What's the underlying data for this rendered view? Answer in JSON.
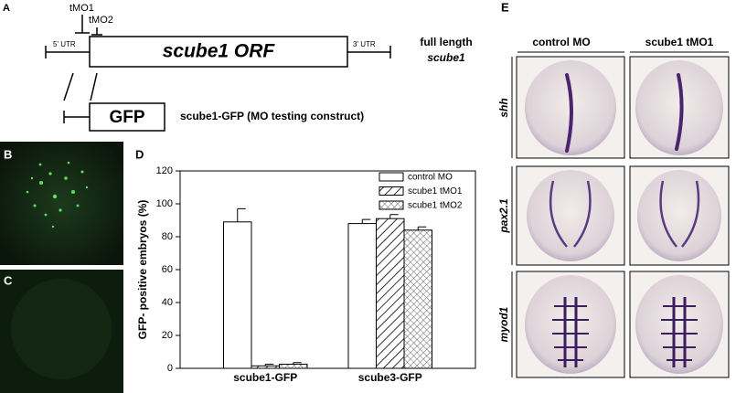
{
  "figure": {
    "panel_a": {
      "label": "A",
      "tmo1": "tMO1",
      "tmo2": "tMO2",
      "utr5": "5' UTR",
      "orf": "scube1 ORF",
      "utr3": "3' UTR",
      "full_length": [
        "full length",
        "scube1"
      ],
      "gfp": "GFP",
      "gfp_construct": "scube1-GFP (MO testing construct)"
    },
    "panel_b": {
      "label": "B"
    },
    "panel_c": {
      "label": "C"
    },
    "panel_d": {
      "label": "D"
    },
    "panel_e": {
      "label": "E",
      "columns": [
        "control MO",
        "scube1 tMO1"
      ],
      "rows": [
        "shh",
        "pax2.1",
        "myod1"
      ]
    }
  },
  "chart_data": {
    "type": "bar",
    "ylabel": "GFP- positive embryos (%)",
    "categories": [
      "scube1-GFP",
      "scube3-GFP"
    ],
    "series": [
      {
        "name": "control MO",
        "color": "#ffffff",
        "pattern": "none",
        "values": [
          89,
          88
        ],
        "errors": [
          8,
          2.5
        ]
      },
      {
        "name": "scube1 tMO1",
        "color": "#ffffff",
        "pattern": "diagonal",
        "values": [
          1.5,
          91
        ],
        "errors": [
          1,
          2.5
        ]
      },
      {
        "name": "scube1 tMO2",
        "color": "#ffffff",
        "pattern": "crosshatch",
        "values": [
          2.5,
          84
        ],
        "errors": [
          1,
          2
        ]
      }
    ],
    "ylim": [
      0,
      120
    ],
    "yticks": [
      0,
      20,
      40,
      60,
      80,
      100,
      120
    ],
    "legend": "upper right"
  }
}
